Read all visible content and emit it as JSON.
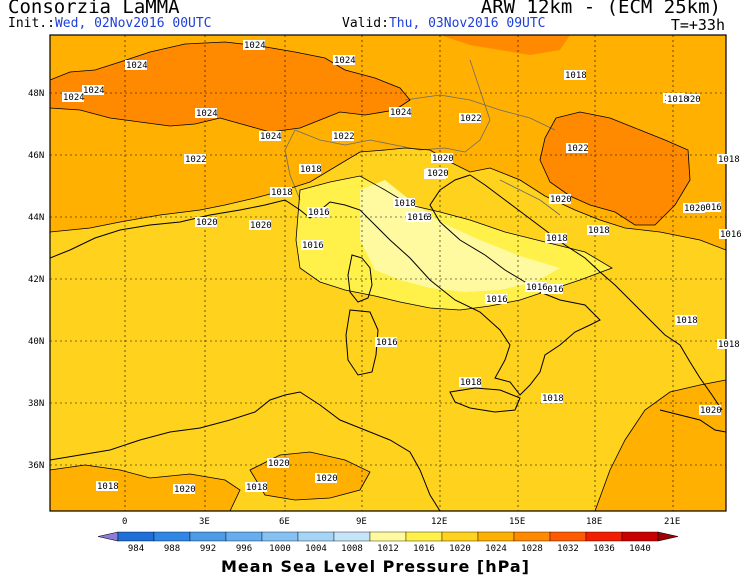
{
  "header": {
    "source": "Consorzia LaMMA",
    "model": "ARW 12km - (ECM 25km)",
    "init_label": "Init.:",
    "init_value": "Wed, 02Nov2016 00UTC",
    "valid_label": "Valid:",
    "valid_value": "Thu, 03Nov2016 09UTC",
    "lead_time": "T=+33h"
  },
  "map": {
    "lat_labels": [
      "48N",
      "46N",
      "44N",
      "42N",
      "40N",
      "38N",
      "36N"
    ],
    "lon_labels": [
      "0",
      "3E",
      "6E",
      "9E",
      "12E",
      "15E",
      "18E",
      "21E"
    ],
    "isobar_labels": [
      {
        "text": "1024"
      },
      {
        "text": "1024"
      },
      {
        "text": "1024"
      },
      {
        "text": "1024"
      },
      {
        "text": "1024"
      },
      {
        "text": "1024"
      },
      {
        "text": "1024"
      },
      {
        "text": "1024"
      },
      {
        "text": "1022"
      },
      {
        "text": "1022"
      },
      {
        "text": "1022"
      },
      {
        "text": "1020"
      },
      {
        "text": "1020"
      },
      {
        "text": "1020"
      },
      {
        "text": "1020"
      },
      {
        "text": "1018"
      },
      {
        "text": "1018"
      },
      {
        "text": "1018"
      },
      {
        "text": "1018"
      },
      {
        "text": "1018"
      },
      {
        "text": "1018"
      },
      {
        "text": "1018"
      },
      {
        "text": "1018"
      },
      {
        "text": "1016"
      },
      {
        "text": "1016"
      },
      {
        "text": "1016"
      },
      {
        "text": "1016"
      },
      {
        "text": "1016"
      },
      {
        "text": "1016"
      },
      {
        "text": "1016"
      },
      {
        "text": "1022"
      },
      {
        "text": "1018"
      },
      {
        "text": "1016"
      },
      {
        "text": "1016"
      },
      {
        "text": "1018"
      },
      {
        "text": "1018"
      },
      {
        "text": "1018"
      },
      {
        "text": "1018"
      },
      {
        "text": "1020"
      },
      {
        "text": "1020"
      },
      {
        "text": "1020"
      },
      {
        "text": "1020"
      },
      {
        "text": "1020"
      },
      {
        "text": "1018"
      },
      {
        "text": "1020"
      },
      {
        "text": "1018"
      },
      {
        "text": "1020"
      },
      {
        "text": "1020"
      },
      {
        "text": "1018"
      },
      {
        "text": "1018"
      }
    ]
  },
  "colorbar": {
    "title": "Mean Sea Level Pressure [hPa]",
    "ticks": [
      "984",
      "988",
      "992",
      "996",
      "1000",
      "1004",
      "1008",
      "1012",
      "1016",
      "1020",
      "1024",
      "1028",
      "1032",
      "1036",
      "1040"
    ],
    "colors": [
      "#1f6fd8",
      "#2f86e6",
      "#4b9be9",
      "#66aeef",
      "#86c1f3",
      "#a6d4f6",
      "#c6e4f8",
      "#fffaa0",
      "#fff04a",
      "#ffd21e",
      "#ffb000",
      "#ff8a00",
      "#ff5a00",
      "#f21e00",
      "#c80000"
    ],
    "under_color": "#8f7ad8",
    "over_color": "#a00000"
  }
}
